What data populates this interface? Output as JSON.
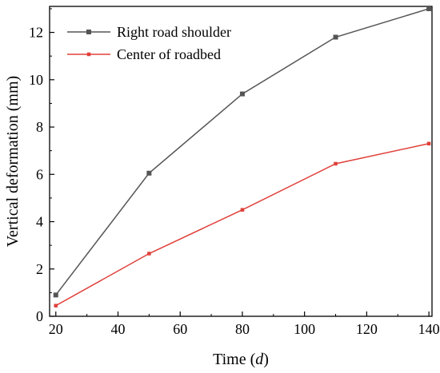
{
  "chart_data": {
    "type": "line",
    "xlabel": "Time (d)",
    "xlabel_parts": {
      "prefix": "Time (",
      "italic": "d",
      "suffix": ")"
    },
    "ylabel": "Vertical deformation (mm)",
    "xlim": [
      18,
      141
    ],
    "ylim": [
      0,
      13.1
    ],
    "xticks": [
      20,
      40,
      60,
      80,
      100,
      120,
      140
    ],
    "yticks": [
      0,
      2,
      4,
      6,
      8,
      10,
      12
    ],
    "grid": false,
    "legend_position": "top-left",
    "x": [
      20,
      50,
      80,
      110,
      140
    ],
    "series": [
      {
        "name": "Right road shoulder",
        "values": [
          0.9,
          6.05,
          9.4,
          11.8,
          13.0
        ],
        "color": "#555555",
        "marker": "square"
      },
      {
        "name": "Center of roadbed",
        "values": [
          0.45,
          2.65,
          4.5,
          6.45,
          7.3
        ],
        "color": "#e0403a",
        "marker": "square"
      }
    ]
  }
}
